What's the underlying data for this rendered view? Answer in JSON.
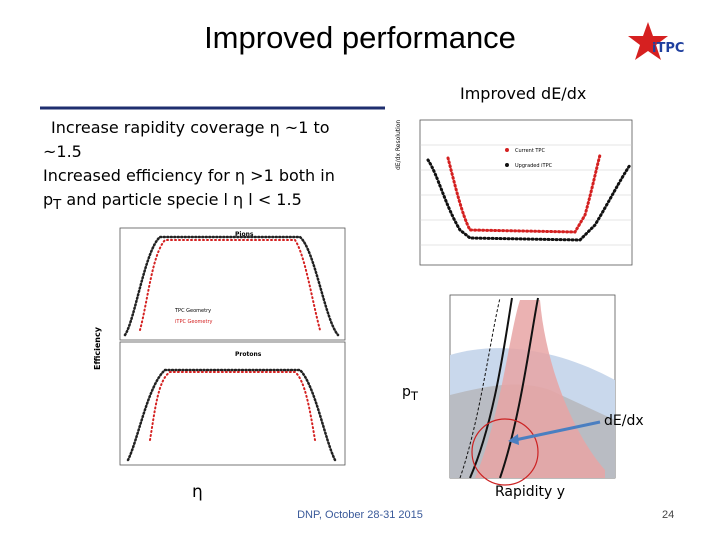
{
  "header": {
    "title": "Improved performance",
    "logo": "iTPC"
  },
  "subtitle": "Improved dE/dx",
  "bullets": [
    {
      "text": "Increase rapidity coverage  η  ~1 to ~1.5"
    },
    {
      "parts": [
        "Increased efficiency for η >1 both in p",
        "T",
        " and particle specie  l η l < 1.5"
      ]
    }
  ],
  "plots": {
    "resolution": {
      "ylabel": "dE/dx Resolution",
      "legend": [
        "Current TPC",
        "Upgraded iTPC"
      ]
    },
    "efficiency": {
      "ylabel": "Efficiency",
      "panels": [
        "Pions",
        "Protons"
      ],
      "legend": [
        "TPC Geometry",
        "iTPC Geometry"
      ]
    },
    "pid": {
      "xlabel": "Rapidity y",
      "ylabel_parts": [
        "p",
        "T"
      ],
      "annotation": "dE/dx"
    }
  },
  "eta_label": "η",
  "footer": {
    "text": "DNP, October 28-31 2015",
    "page": "24"
  }
}
